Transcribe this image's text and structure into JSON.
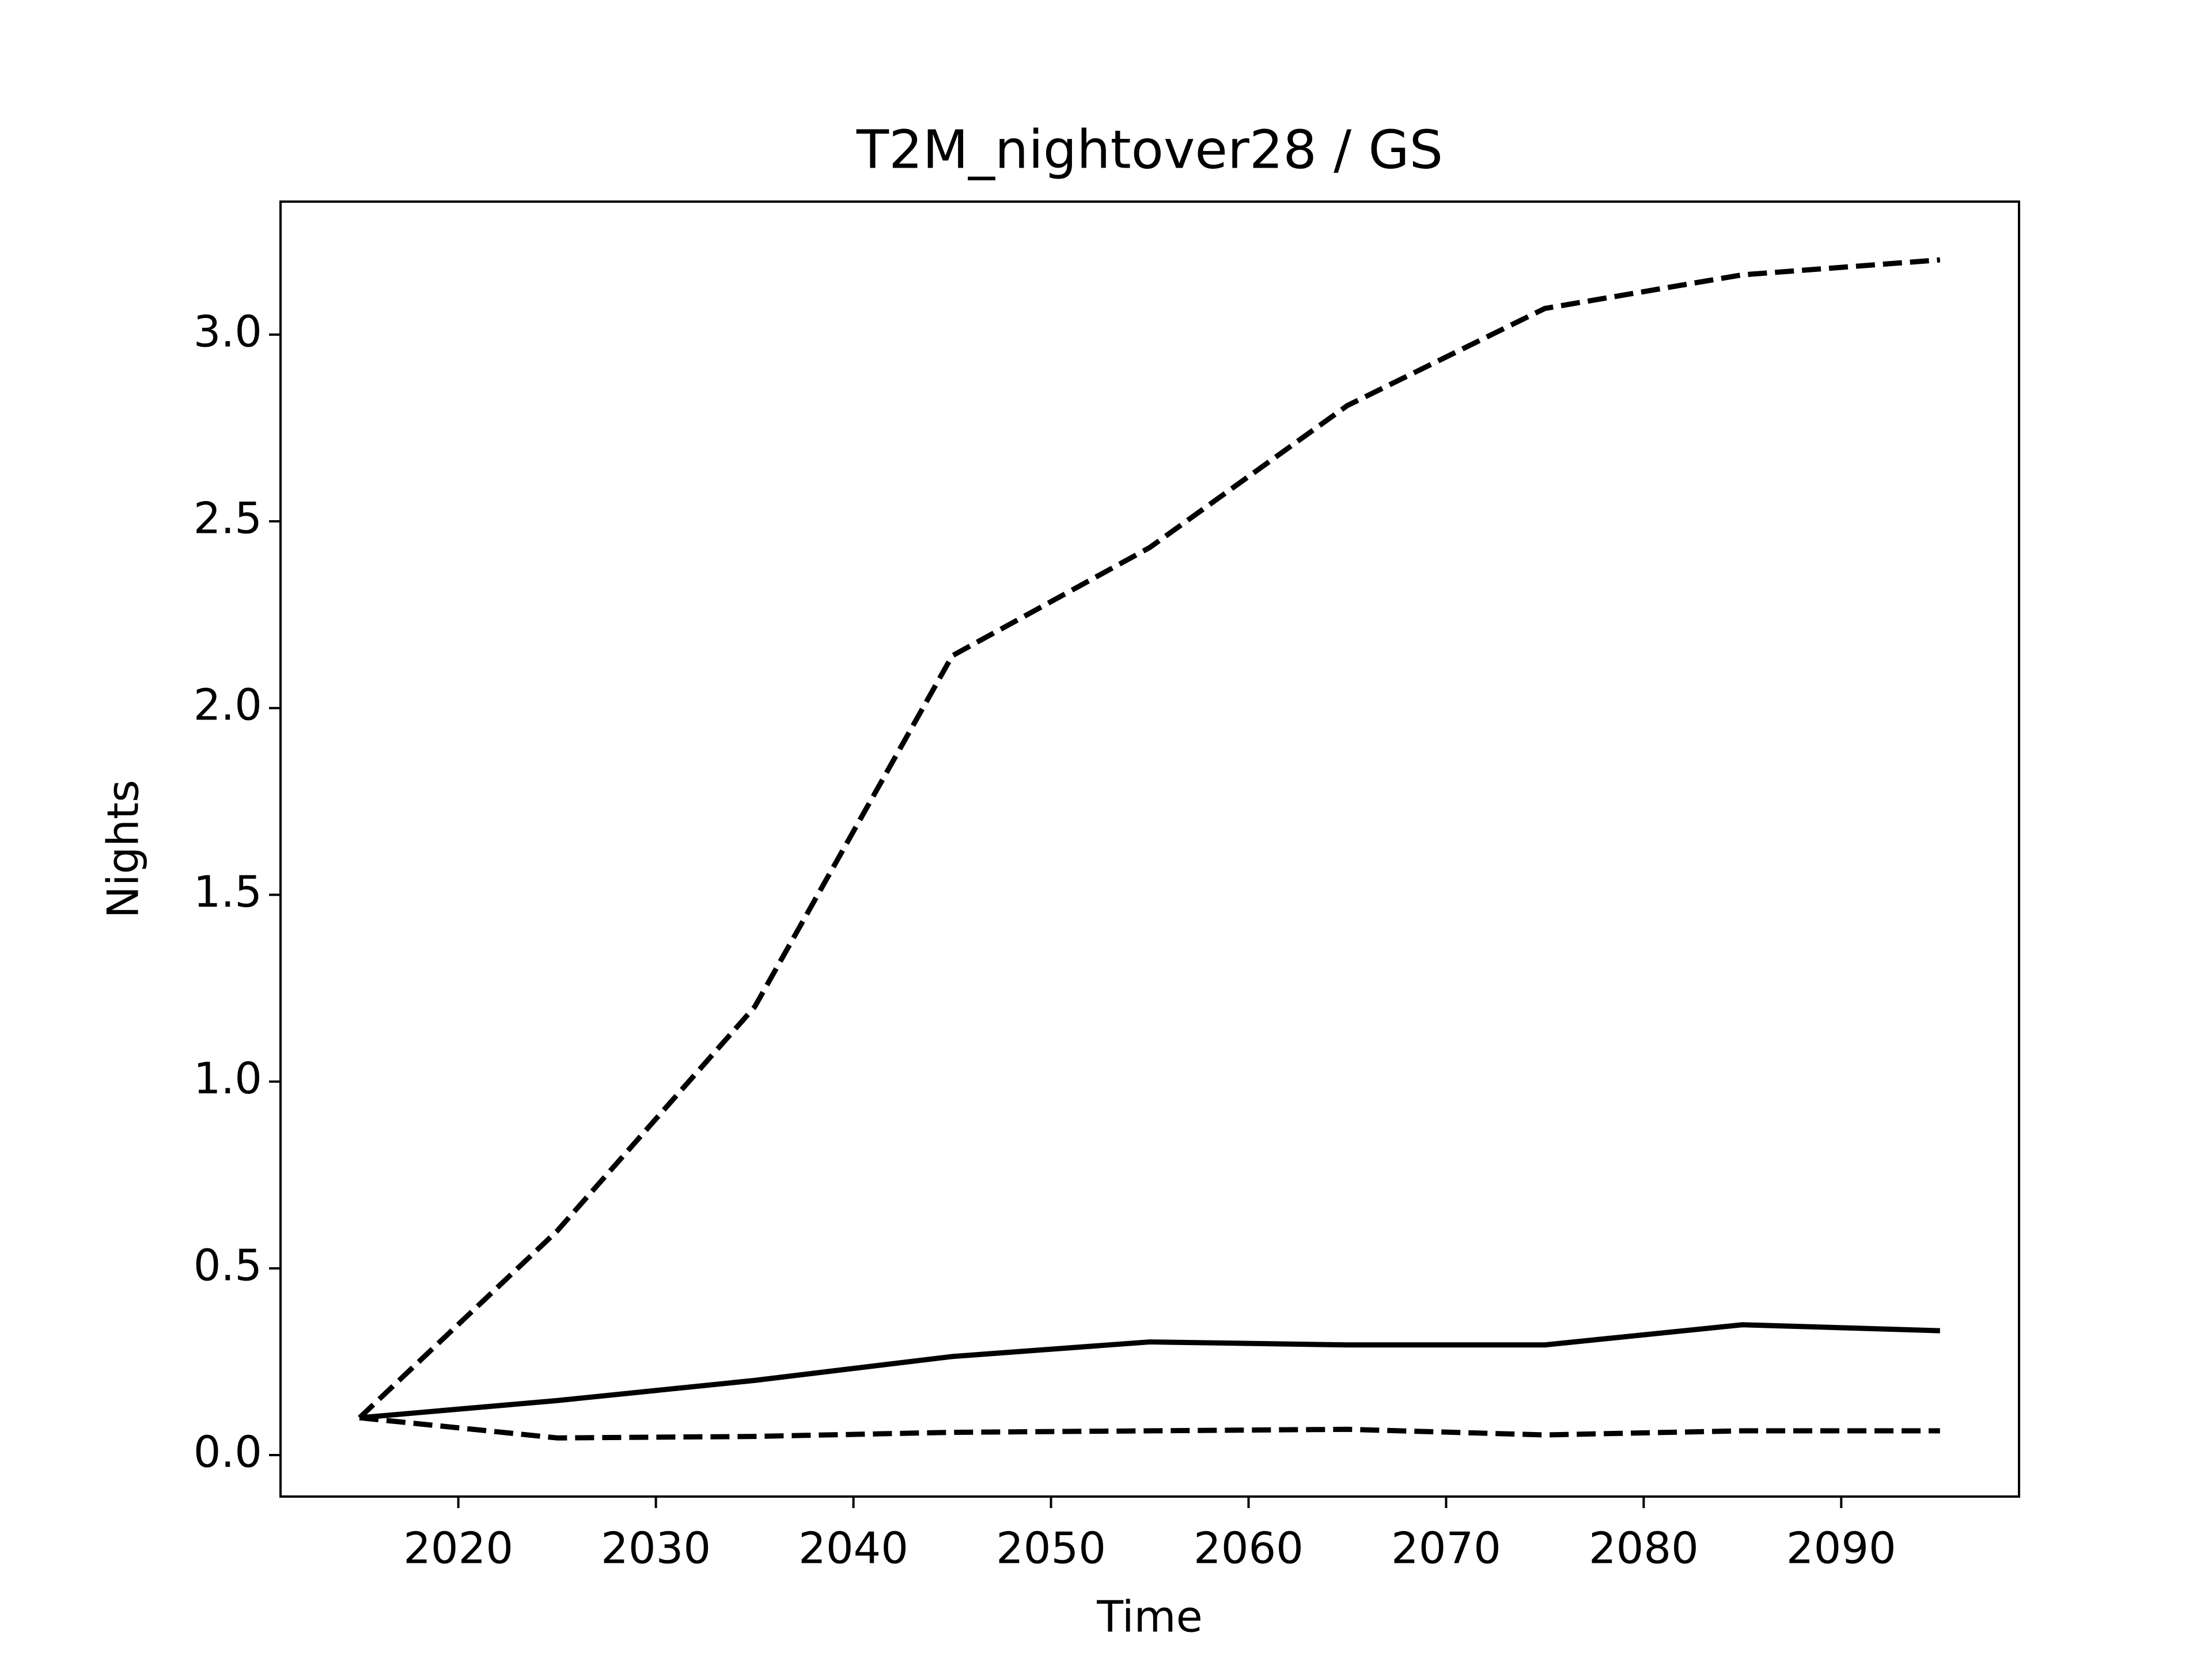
{
  "chart_data": {
    "type": "line",
    "title": "T2M_nightover28 / GS",
    "xlabel": "Time",
    "ylabel": "Nights",
    "x": [
      2015,
      2025,
      2035,
      2045,
      2055,
      2065,
      2075,
      2085,
      2095
    ],
    "series": [
      {
        "color": "#000000",
        "linestyle": "solid",
        "values": [
          0.1,
          0.146,
          0.2,
          0.264,
          0.303,
          0.295,
          0.295,
          0.349,
          0.333
        ]
      },
      {
        "color": "#000000",
        "linestyle": "dashed",
        "values": [
          0.1,
          0.6,
          1.2,
          2.14,
          2.43,
          2.81,
          3.07,
          3.16,
          3.2
        ]
      },
      {
        "color": "#000000",
        "linestyle": "dashed",
        "values": [
          0.1,
          0.046,
          0.05,
          0.061,
          0.065,
          0.069,
          0.054,
          0.065,
          0.065
        ]
      }
    ],
    "xlim": [
      2011,
      2099
    ],
    "ylim": [
      -0.111,
      3.356
    ],
    "xticks": [
      2020,
      2030,
      2040,
      2050,
      2060,
      2070,
      2080,
      2090
    ],
    "yticks": [
      {
        "value": 0,
        "label": "0.0"
      },
      0.5,
      {
        "value": 1,
        "label": "1.0"
      },
      1.5,
      {
        "value": 2,
        "label": "2.0"
      },
      2.5,
      {
        "value": 3,
        "label": "3.0"
      }
    ],
    "grid": false
  }
}
